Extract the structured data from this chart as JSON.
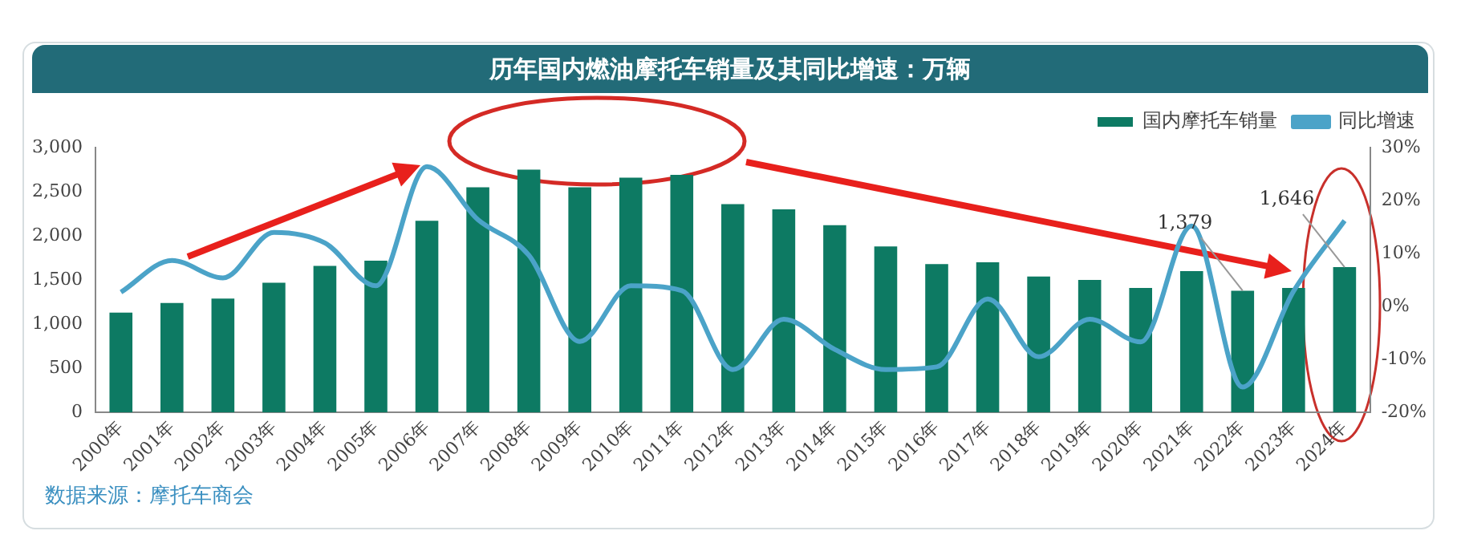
{
  "chart_data": {
    "type": "bar",
    "title": "历年国内燃油摩托车销量及其同比增速：万辆",
    "categories": [
      "2000年",
      "2001年",
      "2002年",
      "2003年",
      "2004年",
      "2005年",
      "2006年",
      "2007年",
      "2008年",
      "2009年",
      "2010年",
      "2011年",
      "2012年",
      "2013年",
      "2014年",
      "2015年",
      "2016年",
      "2017年",
      "2018年",
      "2019年",
      "2020年",
      "2021年",
      "2022年",
      "2023年",
      "2024年"
    ],
    "series": [
      {
        "name": "国内摩托车销量",
        "color": "#0d7a63",
        "values": [
          1130,
          1240,
          1290,
          1470,
          1660,
          1720,
          2170,
          2550,
          2750,
          2550,
          2660,
          2690,
          2360,
          2300,
          2120,
          1880,
          1680,
          1700,
          1540,
          1500,
          1410,
          1600,
          1379,
          1410,
          1646
        ],
        "value_labels": [
          null,
          null,
          null,
          null,
          null,
          null,
          null,
          null,
          null,
          null,
          null,
          null,
          null,
          null,
          null,
          null,
          null,
          null,
          null,
          null,
          null,
          null,
          "1,379",
          null,
          "1,646"
        ]
      },
      {
        "name": "同比增速",
        "type": "line",
        "axis": "y2",
        "color": "#4ba3c8",
        "values": [
          2.7,
          8.7,
          5.4,
          14,
          12,
          3.9,
          26.4,
          16.4,
          9.7,
          -6.6,
          3.9,
          3,
          -11.9,
          -2.4,
          -8.1,
          -11.9,
          -11.4,
          1.4,
          -9.5,
          -2.4,
          -6.7,
          15.2,
          -15.2,
          2.9,
          16.2
        ]
      }
    ],
    "ylim": [
      0,
      3000
    ],
    "yticks": [
      0,
      500,
      {
        "value": 1000,
        "label": "1,000"
      },
      {
        "value": 1500,
        "label": "1,500"
      },
      {
        "value": 2000,
        "label": "2,000"
      },
      {
        "value": 2500,
        "label": "2,500"
      },
      {
        "value": 3000,
        "label": "3,000"
      }
    ],
    "y2lim": [
      -20,
      30
    ],
    "y2ticks": [
      {
        "value": -20,
        "label": "-20%"
      },
      {
        "value": -10,
        "label": "-10%"
      },
      {
        "value": 0,
        "label": "0%"
      },
      {
        "value": 10,
        "label": "10%"
      },
      {
        "value": 20,
        "label": "20%"
      },
      {
        "value": 30,
        "label": "30%"
      }
    ],
    "legend": "top right",
    "annotations": [
      "数据来源：摩托车商会"
    ]
  }
}
